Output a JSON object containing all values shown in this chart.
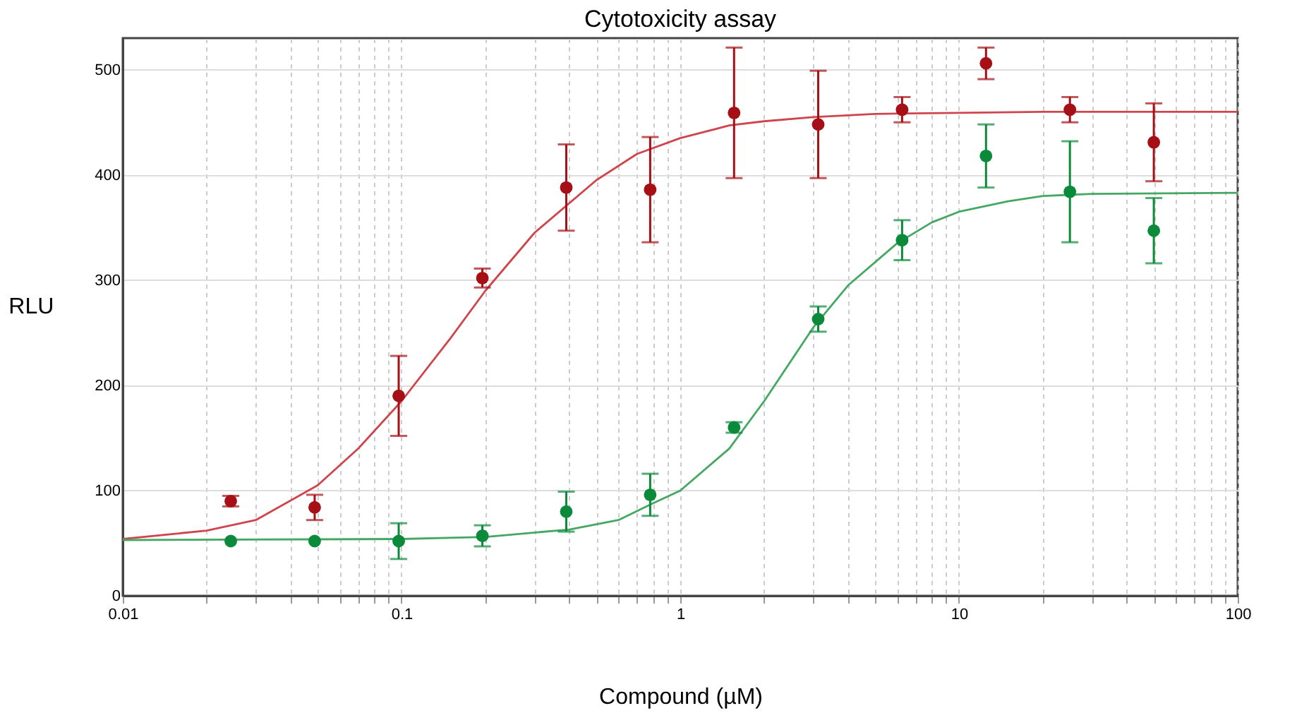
{
  "chart_data": {
    "type": "scatter",
    "title": "Cytotoxicity assay",
    "xlabel": "Compound (µM)",
    "ylabel": "RLU",
    "log": "x",
    "grid": true,
    "marker": "circle",
    "xlim": [
      0.01,
      100
    ],
    "ylim": [
      0,
      530
    ],
    "xticks": [
      0.01,
      {
        "value": 0.02,
        "label": null
      },
      {
        "value": 0.03,
        "label": null
      },
      {
        "value": 0.04,
        "label": null
      },
      {
        "value": 0.05,
        "label": null
      },
      {
        "value": 0.06,
        "label": null
      },
      {
        "value": 0.07,
        "label": null
      },
      {
        "value": 0.08,
        "label": null
      },
      {
        "value": 0.09,
        "label": null
      },
      0.1,
      {
        "value": 0.2,
        "label": null
      },
      {
        "value": 0.3,
        "label": null
      },
      {
        "value": 0.4,
        "label": null
      },
      {
        "value": 0.5,
        "label": null
      },
      {
        "value": 0.6,
        "label": null
      },
      {
        "value": 0.7,
        "label": null
      },
      {
        "value": 0.8,
        "label": null
      },
      {
        "value": 0.9,
        "label": null
      },
      1,
      {
        "value": 2,
        "label": null
      },
      {
        "value": 3,
        "label": null
      },
      {
        "value": 4,
        "label": null
      },
      {
        "value": 5,
        "label": null
      },
      {
        "value": 6,
        "label": null
      },
      {
        "value": 7,
        "label": null
      },
      {
        "value": 8,
        "label": null
      },
      {
        "value": 9,
        "label": null
      },
      10,
      {
        "value": 20,
        "label": null
      },
      {
        "value": 30,
        "label": null
      },
      {
        "value": 40,
        "label": null
      },
      {
        "value": 50,
        "label": null
      },
      {
        "value": 60,
        "label": null
      },
      {
        "value": 70,
        "label": null
      },
      {
        "value": 80,
        "label": null
      },
      {
        "value": 90,
        "label": null
      },
      100
    ],
    "yticks": [
      0,
      100,
      200,
      300,
      400,
      500
    ],
    "x": [
      0.0244,
      0.0488,
      0.0977,
      0.195,
      0.39,
      0.78,
      1.56,
      3.125,
      6.25,
      12.5,
      25,
      50
    ],
    "series": [
      {
        "type": "line",
        "marker": "none",
        "color": "#d0454b",
        "x": [
          0.01,
          0.02,
          0.03,
          0.05,
          0.07,
          0.1,
          0.15,
          0.2,
          0.3,
          0.5,
          0.7,
          1,
          1.5,
          2,
          3,
          5,
          10,
          20,
          50,
          100
        ],
        "values": [
          54,
          62,
          72,
          105,
          140,
          185,
          245,
          290,
          345,
          395,
          420,
          435,
          447,
          451,
          455,
          458,
          459,
          460,
          460,
          460
        ]
      },
      {
        "type": "line",
        "marker": "none",
        "color": "#45a862",
        "x": [
          0.01,
          0.1,
          0.2,
          0.4,
          0.6,
          0.8,
          1,
          1.5,
          2,
          3,
          4,
          6,
          8,
          10,
          15,
          20,
          30,
          100
        ],
        "values": [
          53,
          54,
          56,
          63,
          72,
          88,
          100,
          140,
          185,
          255,
          295,
          335,
          355,
          365,
          375,
          380,
          382,
          383
        ]
      },
      {
        "color": "#a50f15",
        "values": [
          90,
          84,
          190,
          302,
          388,
          386,
          459,
          448,
          462,
          506,
          462,
          431
        ],
        "errors": [
          5,
          12,
          38,
          9,
          41,
          50,
          62,
          51,
          12,
          15,
          12,
          37
        ]
      },
      {
        "color": "#0a8a3a",
        "values": [
          52,
          52,
          52,
          57,
          80,
          96,
          160,
          263,
          338,
          418,
          384,
          347
        ],
        "errors": [
          null,
          null,
          17,
          10,
          19,
          20,
          5,
          12,
          19,
          30,
          48,
          31
        ]
      }
    ]
  }
}
